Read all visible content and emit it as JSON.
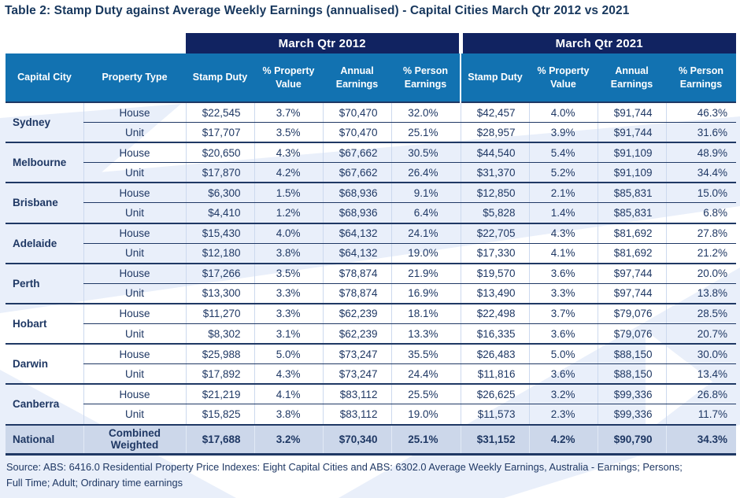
{
  "title": "Table 2: Stamp Duty against Average Weekly Earnings (annualised) - Capital Cities March Qtr 2012 vs 2021",
  "colors": {
    "period_band": "#112361",
    "column_header": "#1272b1",
    "text_navy": "#1f3864",
    "title_navy": "#17375d",
    "national_row_bg": "#ccd7ea",
    "column_separator": "#ccd9ee",
    "watermark": "#e9effa"
  },
  "chart_data": {
    "type": "table",
    "title": "Table 2: Stamp Duty against Average Weekly Earnings (annualised) - Capital Cities March Qtr 2012 vs 2021",
    "period_headers": [
      "March Qtr 2012",
      "March Qtr 2021"
    ],
    "column_headers": [
      "Capital City",
      "Property Type",
      "Stamp Duty",
      "% Property Value",
      "Annual Earnings",
      "% Person Earnings",
      "Stamp Duty",
      "% Property Value",
      "Annual Earnings",
      "% Person Earnings"
    ],
    "city_groups": [
      {
        "city": "Sydney",
        "rows": [
          {
            "property_type": "House",
            "values": [
              "$22,545",
              "3.7%",
              "$70,470",
              "32.0%",
              "$42,457",
              "4.0%",
              "$91,744",
              "46.3%"
            ]
          },
          {
            "property_type": "Unit",
            "values": [
              "$17,707",
              "3.5%",
              "$70,470",
              "25.1%",
              "$28,957",
              "3.9%",
              "$91,744",
              "31.6%"
            ]
          }
        ]
      },
      {
        "city": "Melbourne",
        "rows": [
          {
            "property_type": "House",
            "values": [
              "$20,650",
              "4.3%",
              "$67,662",
              "30.5%",
              "$44,540",
              "5.4%",
              "$91,109",
              "48.9%"
            ]
          },
          {
            "property_type": "Unit",
            "values": [
              "$17,870",
              "4.2%",
              "$67,662",
              "26.4%",
              "$31,370",
              "5.2%",
              "$91,109",
              "34.4%"
            ]
          }
        ]
      },
      {
        "city": "Brisbane",
        "rows": [
          {
            "property_type": "House",
            "values": [
              "$6,300",
              "1.5%",
              "$68,936",
              "9.1%",
              "$12,850",
              "2.1%",
              "$85,831",
              "15.0%"
            ]
          },
          {
            "property_type": "Unit",
            "values": [
              "$4,410",
              "1.2%",
              "$68,936",
              "6.4%",
              "$5,828",
              "1.4%",
              "$85,831",
              "6.8%"
            ]
          }
        ]
      },
      {
        "city": "Adelaide",
        "rows": [
          {
            "property_type": "House",
            "values": [
              "$15,430",
              "4.0%",
              "$64,132",
              "24.1%",
              "$22,705",
              "4.3%",
              "$81,692",
              "27.8%"
            ]
          },
          {
            "property_type": "Unit",
            "values": [
              "$12,180",
              "3.8%",
              "$64,132",
              "19.0%",
              "$17,330",
              "4.1%",
              "$81,692",
              "21.2%"
            ]
          }
        ]
      },
      {
        "city": "Perth",
        "rows": [
          {
            "property_type": "House",
            "values": [
              "$17,266",
              "3.5%",
              "$78,874",
              "21.9%",
              "$19,570",
              "3.6%",
              "$97,744",
              "20.0%"
            ]
          },
          {
            "property_type": "Unit",
            "values": [
              "$13,300",
              "3.3%",
              "$78,874",
              "16.9%",
              "$13,490",
              "3.3%",
              "$97,744",
              "13.8%"
            ]
          }
        ]
      },
      {
        "city": "Hobart",
        "rows": [
          {
            "property_type": "House",
            "values": [
              "$11,270",
              "3.3%",
              "$62,239",
              "18.1%",
              "$22,498",
              "3.7%",
              "$79,076",
              "28.5%"
            ]
          },
          {
            "property_type": "Unit",
            "values": [
              "$8,302",
              "3.1%",
              "$62,239",
              "13.3%",
              "$16,335",
              "3.6%",
              "$79,076",
              "20.7%"
            ]
          }
        ]
      },
      {
        "city": "Darwin",
        "rows": [
          {
            "property_type": "House",
            "values": [
              "$25,988",
              "5.0%",
              "$73,247",
              "35.5%",
              "$26,483",
              "5.0%",
              "$88,150",
              "30.0%"
            ]
          },
          {
            "property_type": "Unit",
            "values": [
              "$17,892",
              "4.3%",
              "$73,247",
              "24.4%",
              "$11,816",
              "3.6%",
              "$88,150",
              "13.4%"
            ]
          }
        ]
      },
      {
        "city": "Canberra",
        "rows": [
          {
            "property_type": "House",
            "values": [
              "$21,219",
              "4.1%",
              "$83,112",
              "25.5%",
              "$26,625",
              "3.2%",
              "$99,336",
              "26.8%"
            ]
          },
          {
            "property_type": "Unit",
            "values": [
              "$15,825",
              "3.8%",
              "$83,112",
              "19.0%",
              "$11,573",
              "2.3%",
              "$99,336",
              "11.7%"
            ]
          }
        ]
      }
    ],
    "national_row": {
      "label": "National",
      "property_type": "Combined Weighted",
      "values": [
        "$17,688",
        "3.2%",
        "$70,340",
        "25.1%",
        "$31,152",
        "4.2%",
        "$90,790",
        "34.3%"
      ]
    },
    "source_lines": [
      "Source: ABS: 6416.0 Residential Property Price Indexes: Eight Capital Cities and ABS: 6302.0 Average Weekly Earnings, Australia - Earnings; Persons;",
      "Full Time; Adult; Ordinary time earnings"
    ]
  }
}
